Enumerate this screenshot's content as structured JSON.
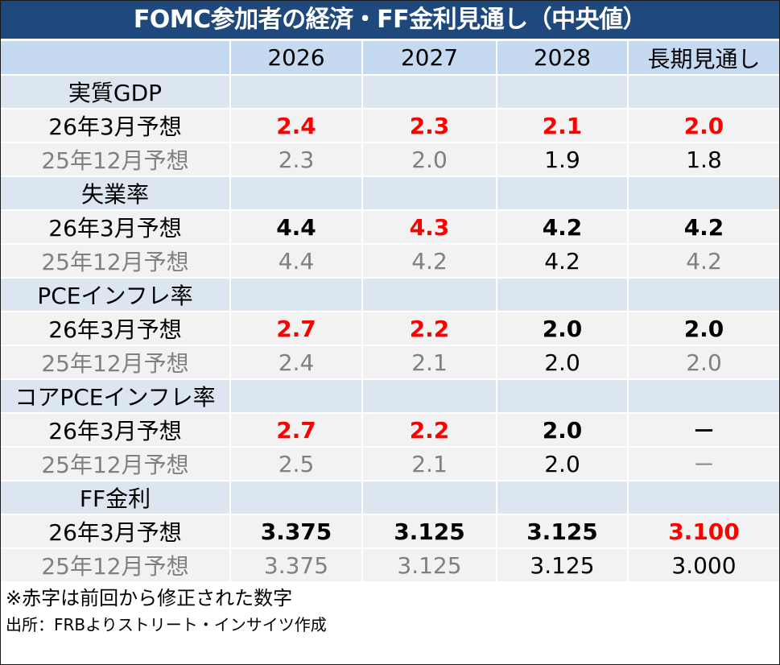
{
  "title": "FOMC参加者の経済・FF金利見通し（中央値）",
  "header": {
    "columns": [
      "",
      "2026",
      "2027",
      "2028",
      "長期見通し"
    ]
  },
  "colors": {
    "title_bg": "#1F497D",
    "header_bg": "#C5D9F1",
    "category_bg": "#DCE6F1",
    "data_bg": "#F2F2F2",
    "revised_red": "#FF0000",
    "previous_gray": "#808080"
  },
  "sections": [
    {
      "category": "実質GDP",
      "current": {
        "label": "26年3月予想",
        "values": [
          "2.4",
          "2.3",
          "2.1",
          "2.0"
        ],
        "styles": [
          "red",
          "red",
          "red",
          "red"
        ]
      },
      "previous": {
        "label": "25年12月予想",
        "values": [
          "2.3",
          "2.0",
          "1.9",
          "1.8"
        ],
        "styles": [
          "gray",
          "gray",
          "black",
          "black"
        ]
      }
    },
    {
      "category": "失業率",
      "current": {
        "label": "26年3月予想",
        "values": [
          "4.4",
          "4.3",
          "4.2",
          "4.2"
        ],
        "styles": [
          "bold",
          "red",
          "bold",
          "bold"
        ]
      },
      "previous": {
        "label": "25年12月予想",
        "values": [
          "4.4",
          "4.2",
          "4.2",
          "4.2"
        ],
        "styles": [
          "gray",
          "gray",
          "black",
          "gray"
        ]
      }
    },
    {
      "category": "PCEインフレ率",
      "current": {
        "label": "26年3月予想",
        "values": [
          "2.7",
          "2.2",
          "2.0",
          "2.0"
        ],
        "styles": [
          "red",
          "red",
          "bold",
          "bold"
        ]
      },
      "previous": {
        "label": "25年12月予想",
        "values": [
          "2.4",
          "2.1",
          "2.0",
          "2.0"
        ],
        "styles": [
          "gray",
          "gray",
          "black",
          "gray"
        ]
      }
    },
    {
      "category": "コアPCEインフレ率",
      "current": {
        "label": "26年3月予想",
        "values": [
          "2.7",
          "2.2",
          "2.0",
          "－"
        ],
        "styles": [
          "red",
          "red",
          "bold",
          "bold"
        ]
      },
      "previous": {
        "label": "25年12月予想",
        "values": [
          "2.5",
          "2.1",
          "2.0",
          "－"
        ],
        "styles": [
          "gray",
          "gray",
          "black",
          "gray"
        ]
      }
    },
    {
      "category": "FF金利",
      "current": {
        "label": "26年3月予想",
        "values": [
          "3.375",
          "3.125",
          "3.125",
          "3.100"
        ],
        "styles": [
          "bold",
          "bold",
          "bold",
          "red"
        ]
      },
      "previous": {
        "label": "25年12月予想",
        "values": [
          "3.375",
          "3.125",
          "3.125",
          "3.000"
        ],
        "styles": [
          "gray",
          "gray",
          "black",
          "black"
        ]
      }
    }
  ],
  "footer": {
    "note": "※赤字は前回から修正された数字",
    "source": "出所：FRBよりストリート・インサイツ作成"
  }
}
